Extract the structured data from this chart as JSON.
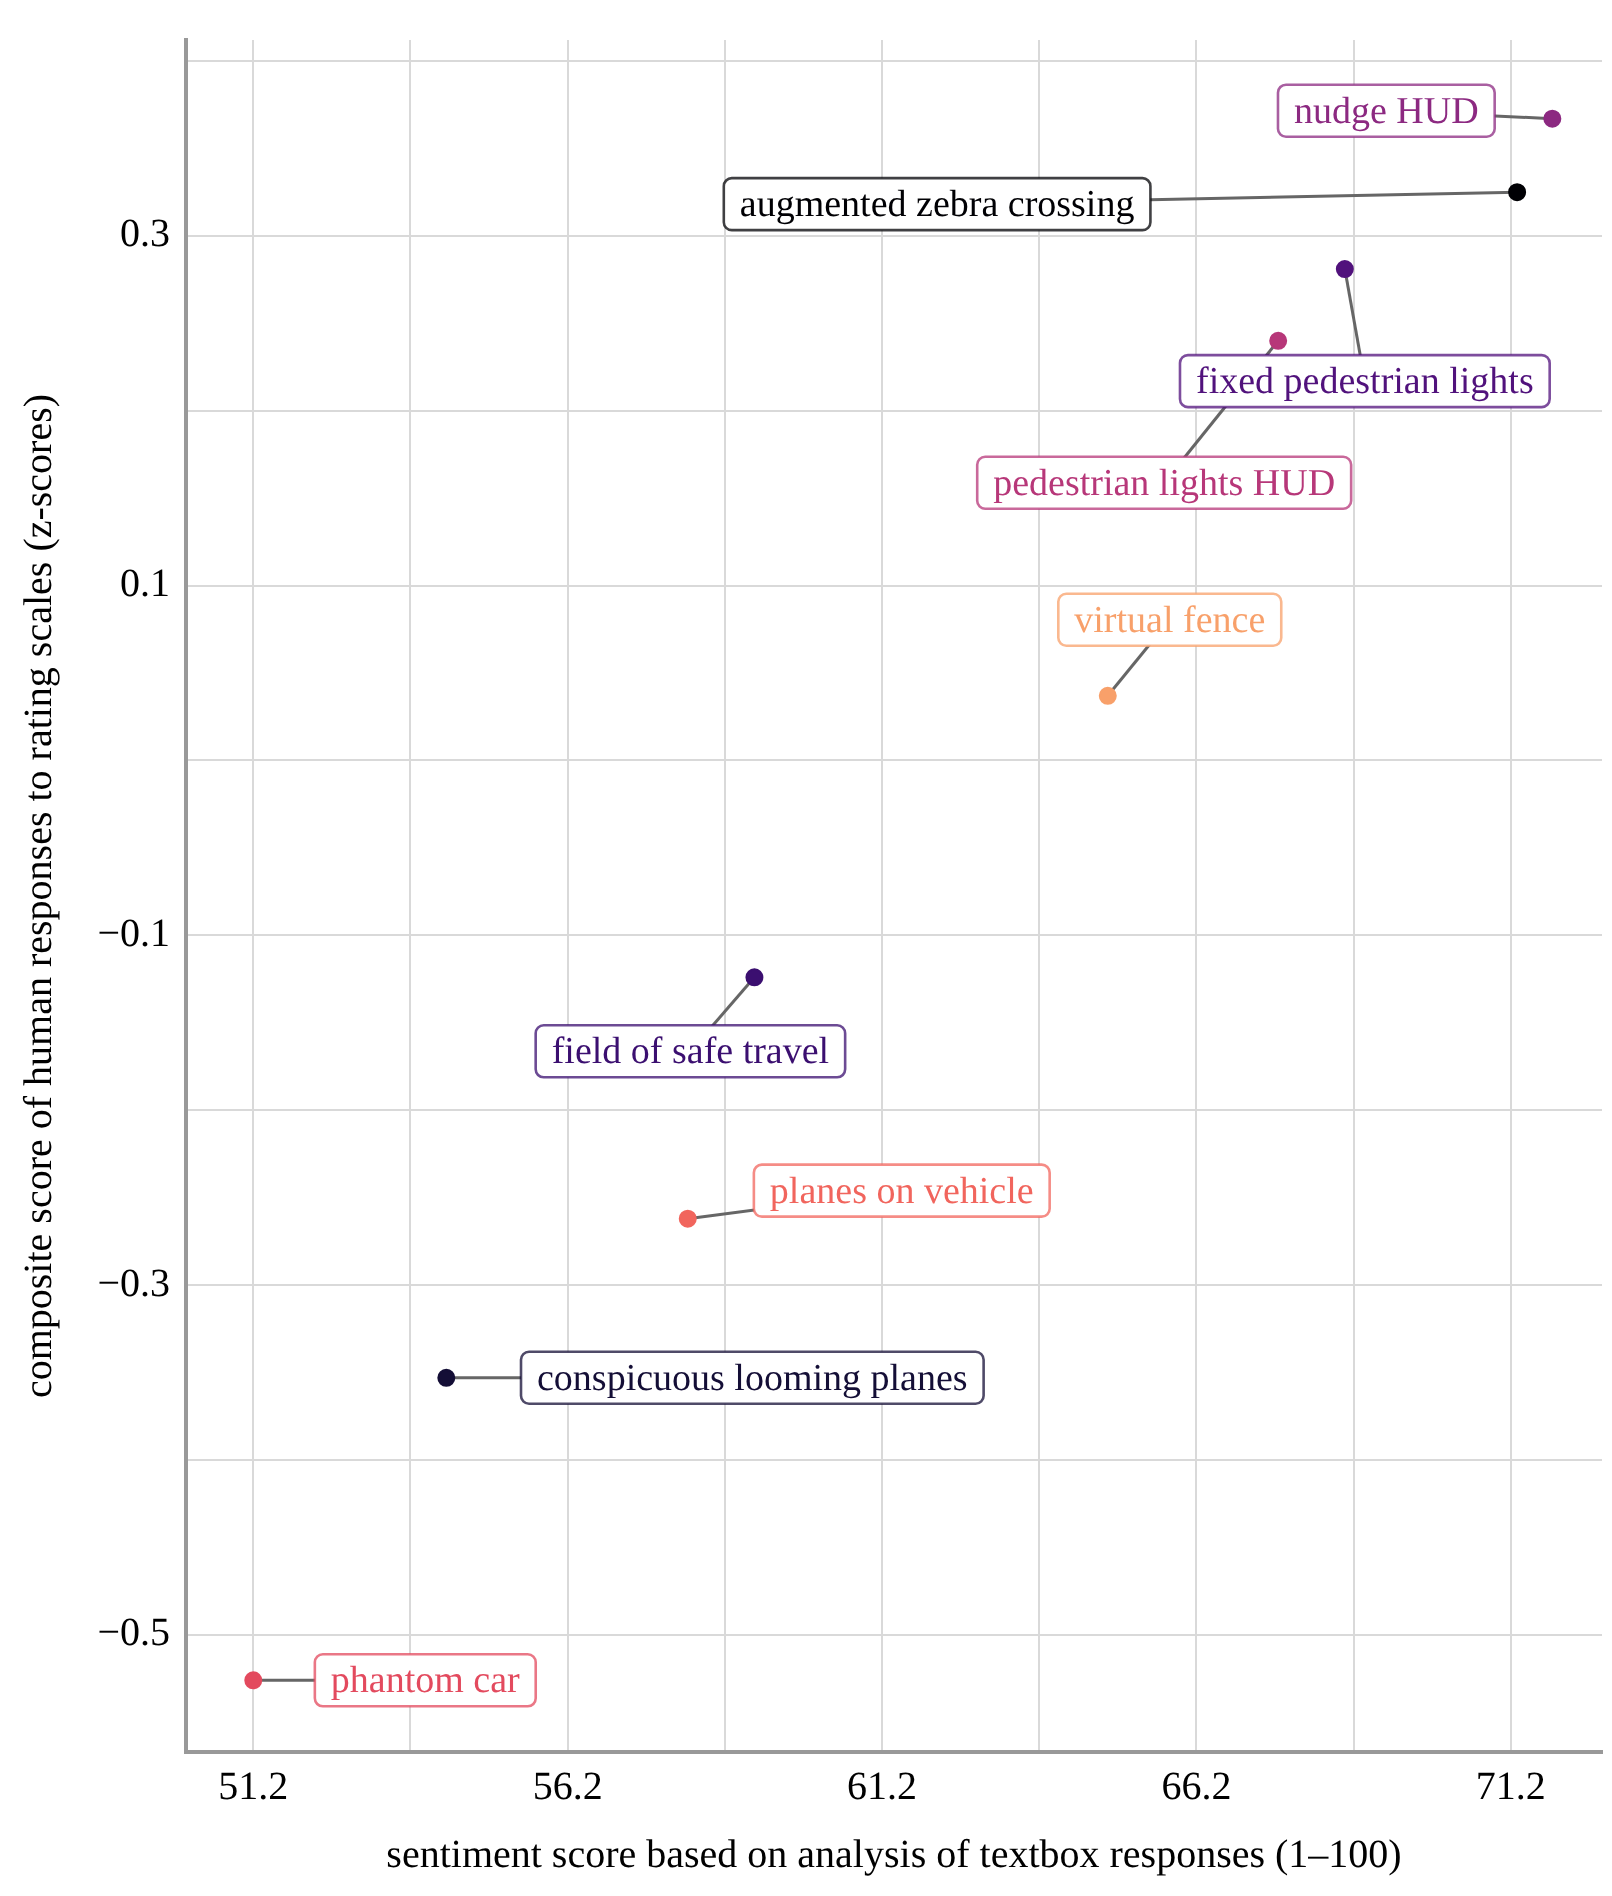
{
  "chart_data": {
    "type": "scatter",
    "xlabel": "sentiment score based on analysis of textbox responses (1–100)",
    "ylabel": "composite score of human responses to rating scales (z-scores)",
    "xlim": [
      50.13,
      72.65
    ],
    "ylim": [
      -0.567,
      0.412
    ],
    "xticks": [
      51.2,
      {
        "value": 53.7,
        "label": null
      },
      56.2,
      {
        "value": 58.7,
        "label": null
      },
      61.2,
      {
        "value": 63.7,
        "label": null
      },
      66.2,
      {
        "value": 68.7,
        "label": null
      },
      71.2
    ],
    "yticks": [
      {
        "value": -0.5,
        "label": "−0.5"
      },
      {
        "value": -0.4,
        "label": null
      },
      {
        "value": -0.3,
        "label": "−0.3"
      },
      {
        "value": -0.2,
        "label": null
      },
      {
        "value": -0.1,
        "label": "−0.1"
      },
      {
        "value": 0,
        "label": null
      },
      0.1,
      {
        "value": 0.2,
        "label": null
      },
      0.3,
      {
        "value": 0.4,
        "label": null
      }
    ],
    "grid": true,
    "legend": false,
    "marker": "circle",
    "series": [
      {
        "name": "nudge HUD",
        "color": "#8c2981",
        "x": [
          71.86
        ],
        "values": [
          0.367
        ]
      },
      {
        "name": "augmented zebra crossing",
        "color": "#000004",
        "x": [
          71.3
        ],
        "values": [
          0.325
        ]
      },
      {
        "name": "fixed pedestrian lights",
        "color": "#51127c",
        "x": [
          68.56
        ],
        "values": [
          0.281
        ]
      },
      {
        "name": "pedestrian lights HUD",
        "color": "#b73779",
        "x": [
          67.5
        ],
        "values": [
          0.24
        ]
      },
      {
        "name": "virtual fence",
        "color": "#f8a06a",
        "x": [
          64.79
        ],
        "values": [
          0.037
        ]
      },
      {
        "name": "field of safe travel",
        "color": "#3b0f70",
        "x": [
          59.17
        ],
        "values": [
          -0.124
        ]
      },
      {
        "name": "planes on vehicle",
        "color": "#f1655d",
        "x": [
          58.11
        ],
        "values": [
          -0.262
        ]
      },
      {
        "name": "conspicuous looming planes",
        "color": "#140e36",
        "x": [
          54.27
        ],
        "values": [
          -0.353
        ]
      },
      {
        "name": "phantom car",
        "color": "#e34a5e",
        "x": [
          51.2
        ],
        "values": [
          -0.526
        ]
      }
    ]
  }
}
